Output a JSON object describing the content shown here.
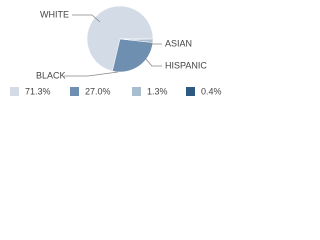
{
  "chart_data": {
    "type": "pie",
    "categories": [
      "WHITE",
      "HISPANIC",
      "ASIAN",
      "BLACK"
    ],
    "values": [
      71.3,
      27.0,
      1.3,
      0.4
    ],
    "value_labels": [
      "71.3%",
      "27.0%",
      "1.3%",
      "0.4%"
    ],
    "colors": [
      "#d3dce6",
      "#6f8fb0",
      "#a9bdd1",
      "#2c5a80"
    ]
  }
}
